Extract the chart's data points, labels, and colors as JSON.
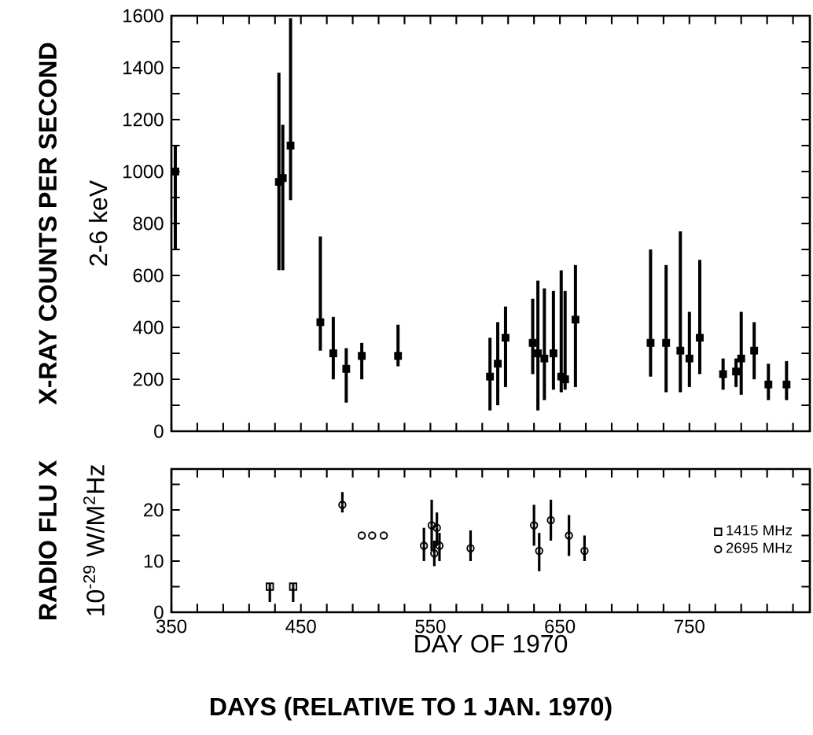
{
  "chart_data": [
    {
      "type": "scatter",
      "ylabel": "X-RAY COUNTS PER SECOND",
      "annotations": [
        "2-6 keV"
      ],
      "xlim": [
        350,
        843
      ],
      "ylim": [
        0,
        1600
      ],
      "xticks": [
        350,
        370,
        390,
        410,
        430,
        450,
        470,
        490,
        510,
        530,
        550,
        570,
        590,
        610,
        630,
        650,
        670,
        690,
        710,
        730,
        750,
        770,
        790,
        810,
        830
      ],
      "yticks": [
        0,
        {
          "value": 100,
          "label": null
        },
        200,
        {
          "value": 300,
          "label": null
        },
        400,
        {
          "value": 500,
          "label": null
        },
        600,
        {
          "value": 700,
          "label": null
        },
        800,
        {
          "value": 900,
          "label": null
        },
        1000,
        {
          "value": 1100,
          "label": null
        },
        1200,
        {
          "value": 1300,
          "label": null
        },
        1400,
        {
          "value": 1500,
          "label": null
        },
        1600
      ],
      "tick_labels": "y",
      "series": [
        {
          "color": "#000000",
          "marker": "square",
          "x": [
            353,
            433,
            436,
            442,
            465,
            475,
            485,
            497,
            525,
            596,
            602,
            608,
            629,
            633,
            638,
            645,
            651,
            654,
            662,
            720,
            732,
            743,
            750,
            758,
            776,
            786,
            790,
            800,
            811,
            825
          ],
          "values": [
            1000,
            960,
            975,
            1100,
            420,
            300,
            240,
            290,
            290,
            210,
            260,
            360,
            340,
            300,
            280,
            300,
            210,
            200,
            430,
            340,
            340,
            310,
            280,
            360,
            220,
            230,
            280,
            310,
            180,
            180
          ],
          "errors": [
            [
              700,
              1100
            ],
            [
              620,
              1380
            ],
            [
              620,
              1180
            ],
            [
              890,
              1590
            ],
            [
              310,
              750
            ],
            [
              200,
              440
            ],
            [
              110,
              320
            ],
            [
              200,
              340
            ],
            [
              250,
              410
            ],
            [
              80,
              360
            ],
            [
              100,
              420
            ],
            [
              170,
              480
            ],
            [
              220,
              510
            ],
            [
              80,
              580
            ],
            [
              120,
              550
            ],
            [
              160,
              540
            ],
            [
              150,
              620
            ],
            [
              160,
              540
            ],
            [
              170,
              640
            ],
            [
              210,
              700
            ],
            [
              150,
              640
            ],
            [
              150,
              770
            ],
            [
              170,
              460
            ],
            [
              220,
              660
            ],
            [
              160,
              280
            ],
            [
              170,
              280
            ],
            [
              140,
              460
            ],
            [
              200,
              420
            ],
            [
              120,
              260
            ],
            [
              120,
              270
            ]
          ]
        }
      ]
    },
    {
      "type": "scatter",
      "ylabel": "RADIO FLU X",
      "xlabel": "DAY OF 1970",
      "annotations": [
        "10$^{-29}$ W/M$^{2}$Hz",
        "DAYS (RELATIVE TO 1 JAN. 1970)"
      ],
      "xlim": [
        350,
        843
      ],
      "ylim": [
        0,
        28
      ],
      "xticks": [
        350,
        {
          "value": 370,
          "label": null
        },
        {
          "value": 390,
          "label": null
        },
        {
          "value": 410,
          "label": null
        },
        {
          "value": 430,
          "label": null
        },
        450,
        {
          "value": 470,
          "label": null
        },
        {
          "value": 490,
          "label": null
        },
        {
          "value": 510,
          "label": null
        },
        {
          "value": 530,
          "label": null
        },
        550,
        {
          "value": 570,
          "label": null
        },
        {
          "value": 590,
          "label": null
        },
        {
          "value": 610,
          "label": null
        },
        {
          "value": 630,
          "label": null
        },
        650,
        {
          "value": 670,
          "label": null
        },
        {
          "value": 690,
          "label": null
        },
        {
          "value": 710,
          "label": null
        },
        {
          "value": 730,
          "label": null
        },
        750,
        {
          "value": 770,
          "label": null
        },
        {
          "value": 790,
          "label": null
        },
        {
          "value": 810,
          "label": null
        },
        {
          "value": 830,
          "label": null
        }
      ],
      "yticks": [
        0,
        {
          "value": 5,
          "label": null
        },
        10,
        {
          "value": 15,
          "label": null
        },
        20,
        {
          "value": 25,
          "label": null
        }
      ],
      "legend": "right",
      "series": [
        {
          "name": "1415 MHz",
          "color": "#000000",
          "marker": "square",
          "x": [
            426,
            444
          ],
          "values": [
            5,
            5
          ],
          "errors": [
            [
              2,
              5.5
            ],
            [
              2,
              5.5
            ]
          ]
        },
        {
          "name": "2695 MHz",
          "color": "#000000",
          "marker": "circle",
          "x": [
            482,
            497,
            505,
            514,
            545,
            551,
            553,
            555,
            557,
            581,
            630,
            634,
            643,
            657,
            669
          ],
          "values": [
            21,
            15,
            15,
            15,
            13,
            17,
            11.5,
            16.5,
            13,
            12.5,
            17,
            12,
            18,
            15,
            12
          ],
          "errors": [
            [
              19.5,
              23.5
            ],
            null,
            null,
            null,
            [
              10,
              16.5
            ],
            [
              12,
              22
            ],
            [
              9,
              14
            ],
            [
              13,
              19.5
            ],
            [
              10,
              15.5
            ],
            [
              10,
              16
            ],
            [
              13,
              21
            ],
            [
              8,
              15.5
            ],
            [
              14,
              22
            ],
            [
              11,
              19
            ],
            [
              10,
              15
            ]
          ]
        }
      ]
    }
  ]
}
